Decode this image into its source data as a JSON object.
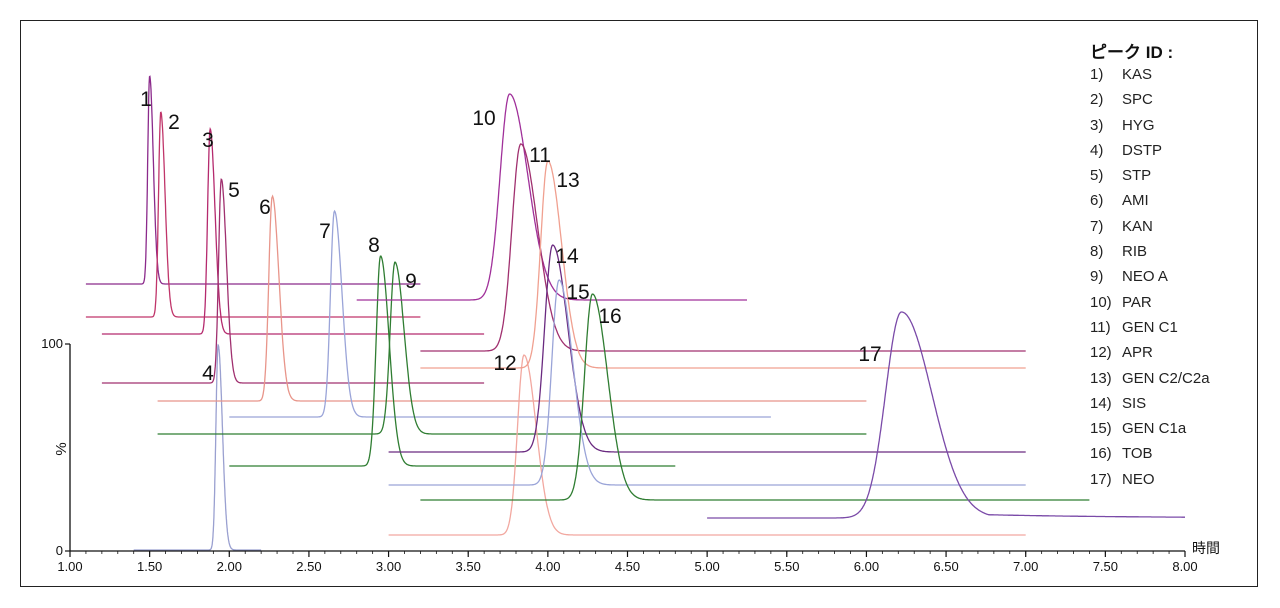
{
  "chart_data": {
    "type": "line",
    "title": "",
    "xlabel": "時間",
    "ylabel": "%",
    "x_ticks": [
      "1.00",
      "1.50",
      "2.00",
      "2.50",
      "3.00",
      "3.50",
      "4.00",
      "4.50",
      "5.00",
      "5.50",
      "6.00",
      "6.50",
      "7.00",
      "7.50",
      "8.00"
    ],
    "xlim": [
      1.0,
      8.0
    ],
    "y_ticks": [
      "0",
      "100"
    ],
    "ylim": [
      0,
      100
    ],
    "grid": false,
    "legend_position": "right",
    "legend_title": "ピーク ID :",
    "peaks": [
      {
        "id": "1",
        "name": "KAS",
        "label_number": "1)",
        "retention_time": 1.5,
        "color": "#8b2a8b"
      },
      {
        "id": "2",
        "name": "SPC",
        "label_number": "2)",
        "retention_time": 1.57,
        "color": "#c0356a"
      },
      {
        "id": "3",
        "name": "HYG",
        "label_number": "3)",
        "retention_time": 1.88,
        "color": "#b52a6e"
      },
      {
        "id": "4",
        "name": "DSTP",
        "label_number": "4)",
        "retention_time": 1.93,
        "color": "#9aa0d0"
      },
      {
        "id": "5",
        "name": "STP",
        "label_number": "5)",
        "retention_time": 1.95,
        "color": "#a0306f"
      },
      {
        "id": "6",
        "name": "AMI",
        "label_number": "6)",
        "retention_time": 2.27,
        "color": "#e8958a"
      },
      {
        "id": "7",
        "name": "KAN",
        "label_number": "7)",
        "retention_time": 2.66,
        "color": "#9aa4d8"
      },
      {
        "id": "8",
        "name": "RIB",
        "label_number": "8)",
        "retention_time": 2.95,
        "color": "#2f7d32"
      },
      {
        "id": "9",
        "name": "NEO A",
        "label_number": "9)",
        "retention_time": 3.04,
        "color": "#2f7d32"
      },
      {
        "id": "10",
        "name": "PAR",
        "label_number": "10)",
        "retention_time": 3.76,
        "color": "#a0309a"
      },
      {
        "id": "11",
        "name": "GEN C1",
        "label_number": "11)",
        "retention_time": 3.83,
        "color": "#a0306f"
      },
      {
        "id": "12",
        "name": "APR",
        "label_number": "12)",
        "retention_time": 3.85,
        "color": "#f2a8a0"
      },
      {
        "id": "13",
        "name": "GEN C2/C2a",
        "label_number": "13)",
        "retention_time": 4.0,
        "color": "#f0a090"
      },
      {
        "id": "14",
        "name": "SIS",
        "label_number": "14)",
        "retention_time": 4.03,
        "color": "#6a2a80"
      },
      {
        "id": "15",
        "name": "GEN C1a",
        "label_number": "15)",
        "retention_time": 4.07,
        "color": "#9aa4d8"
      },
      {
        "id": "16",
        "name": "TOB",
        "label_number": "16)",
        "retention_time": 4.28,
        "color": "#2f7d32"
      },
      {
        "id": "17",
        "name": "NEO",
        "label_number": "17)",
        "retention_time": 6.22,
        "color": "#7a4aa8"
      }
    ]
  }
}
